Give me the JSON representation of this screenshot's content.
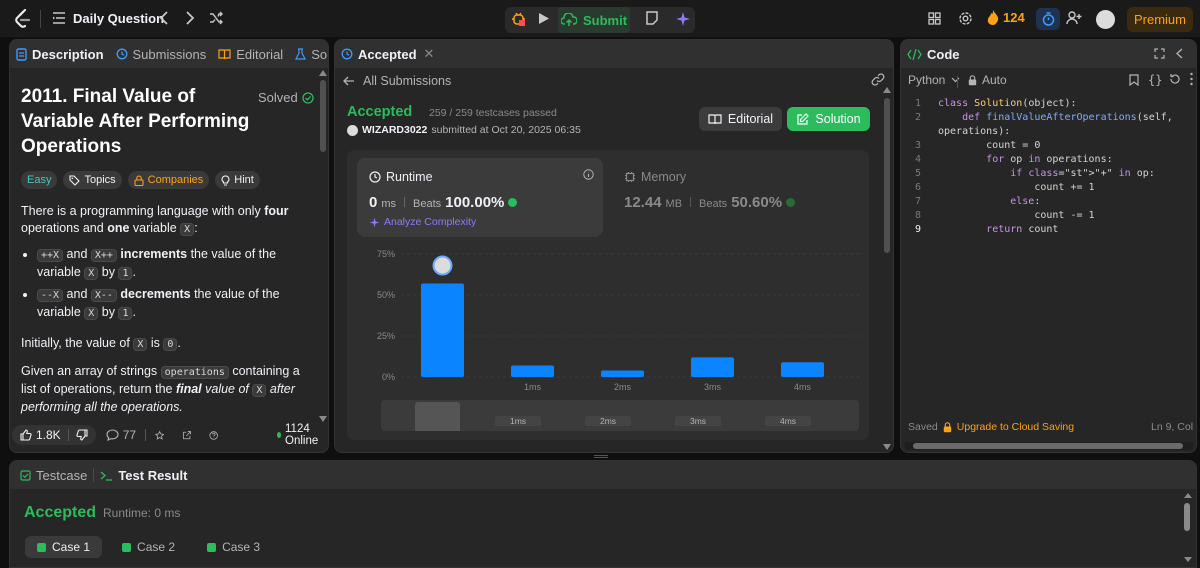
{
  "topbar": {
    "title": "Daily Question",
    "submit_label": "Submit",
    "streak": "124",
    "premium_label": "Premium"
  },
  "description": {
    "tab_description": "Description",
    "tab_submissions": "Submissions",
    "tab_editorial": "Editorial",
    "tab_solutions": "Solution",
    "title": "2011. Final Value of Variable After Performing Operations",
    "solved_label": "Solved",
    "chips": {
      "easy": "Easy",
      "topics": "Topics",
      "companies": "Companies",
      "hint": "Hint"
    },
    "p1_a": "There is a programming language with only ",
    "p1_b": "four",
    "p1_c": " operations and ",
    "p1_d": "one",
    "p1_e": " variable ",
    "p1_var": "X",
    "b1_op1": "++X",
    "b1_and": " and ",
    "b1_op2": "X++",
    "b1_bold": " increments",
    "b1_rest": " the value of the variable ",
    "b1_x": "X",
    "b1_by": " by ",
    "b1_one": "1",
    "b2_op1": "--X",
    "b2_and": " and ",
    "b2_op2": "X--",
    "b2_bold": " decrements",
    "b2_rest": " the value of the variable ",
    "b2_x": "X",
    "b2_by": " by ",
    "b2_one": "1",
    "p2_a": "Initially, the value of ",
    "p2_x": "X",
    "p2_b": " is ",
    "p2_zero": "0",
    "p3_a": "Given an array of strings ",
    "p3_code": "operations",
    "p3_b": " containing a list of operations, return the ",
    "p3_final": "final",
    "p3_c": " value of ",
    "p3_x": "X",
    "p3_d": " after performing all the operations.",
    "likes": "1.8K",
    "comments": "77",
    "online": "1124 Online"
  },
  "submission": {
    "tab_label": "Accepted",
    "back_label": "All Submissions",
    "status": "Accepted",
    "testcases": "259 / 259 testcases passed",
    "user": "WIZARD3022",
    "submitted_at": "submitted at Oct 20, 2025 06:35",
    "editorial_label": "Editorial",
    "solution_label": "Solution",
    "runtime_label": "Runtime",
    "runtime_value": "0",
    "runtime_unit": "ms",
    "beats_label": "Beats",
    "runtime_beats": "100.00%",
    "analyze_label": "Analyze Complexity",
    "memory_label": "Memory",
    "memory_value": "12.44",
    "memory_unit": "MB",
    "memory_beats": "50.60%"
  },
  "chart_data": {
    "type": "bar",
    "categories": [
      "0ms",
      "1ms",
      "2ms",
      "3ms",
      "4ms"
    ],
    "x_tick_labels": [
      "",
      "1ms",
      "2ms",
      "3ms",
      "4ms"
    ],
    "values": [
      57,
      7,
      4,
      12,
      9
    ],
    "ylim": [
      0,
      75
    ],
    "y_ticks": [
      "0%",
      "25%",
      "50%",
      "75%"
    ],
    "highlight_category": "0ms",
    "bar_color": "#0a84ff",
    "grid": true
  },
  "code": {
    "title": "Code",
    "language": "Python",
    "auto_label": "Auto",
    "lines": [
      {
        "n": "1",
        "text": "class Solution(object):"
      },
      {
        "n": "2",
        "text": "    def finalValueAfterOperations(self,"
      },
      {
        "n": "",
        "text": "operations):"
      },
      {
        "n": "3",
        "text": "        count = 0"
      },
      {
        "n": "4",
        "text": "        for op in operations:"
      },
      {
        "n": "5",
        "text": "            if \"+\" in op:"
      },
      {
        "n": "6",
        "text": "                count += 1"
      },
      {
        "n": "7",
        "text": "            else:"
      },
      {
        "n": "8",
        "text": "                count -= 1"
      },
      {
        "n": "9",
        "text": "        return count"
      }
    ],
    "saved_label": "Saved",
    "upgrade_label": "Upgrade to Cloud Saving",
    "cursor_pos": "Ln 9, Col"
  },
  "bottom": {
    "tab_testcase": "Testcase",
    "tab_result": "Test Result",
    "status": "Accepted",
    "runtime": "Runtime: 0 ms",
    "cases": [
      "Case 1",
      "Case 2",
      "Case 3"
    ]
  },
  "colors": {
    "accent": "#ffa116",
    "success": "#2cbb5d",
    "bar": "#0a84ff"
  }
}
